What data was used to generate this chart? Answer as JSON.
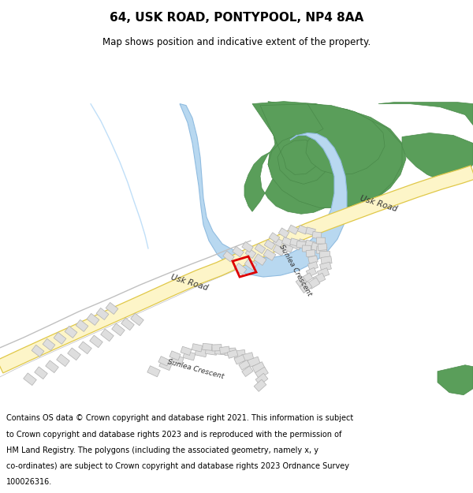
{
  "title": "64, USK ROAD, PONTYPOOL, NP4 8AA",
  "subtitle": "Map shows position and indicative extent of the property.",
  "footer_lines": [
    "Contains OS data © Crown copyright and database right 2021. This information is subject",
    "to Crown copyright and database rights 2023 and is reproduced with the permission of",
    "HM Land Registry. The polygons (including the associated geometry, namely x, y",
    "co-ordinates) are subject to Crown copyright and database rights 2023 Ordnance Survey",
    "100026316."
  ],
  "map_bg": "#ffffff",
  "road_fill": "#fdf5c8",
  "road_edge": "#e0c848",
  "river_fill": "#b8d8f0",
  "river_edge": "#90bce0",
  "green_fill": "#5a9e5a",
  "green_edge": "#4a8a4a",
  "building_fill": "#dedede",
  "building_edge": "#b0b0b0",
  "highlight_edge": "#dd0000",
  "stream_color": "#c0dff8",
  "road_line": "#c0c0c0"
}
